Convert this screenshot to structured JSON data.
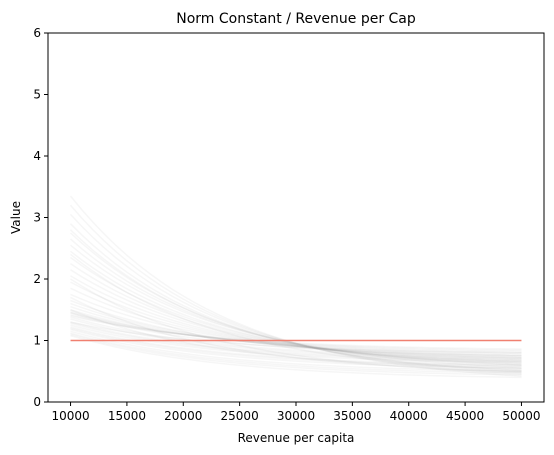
{
  "chart_data": {
    "type": "line",
    "title": "Norm Constant / Revenue per Cap",
    "xlabel": "Revenue per capita",
    "ylabel": "Value",
    "xlim": [
      8000,
      52000
    ],
    "ylim": [
      0,
      6
    ],
    "x_ticks": [
      10000,
      15000,
      20000,
      25000,
      30000,
      35000,
      40000,
      45000,
      50000
    ],
    "y_ticks": [
      0,
      1,
      2,
      3,
      4,
      5,
      6
    ],
    "grid": false,
    "reference_line": {
      "y": 1,
      "x_range": [
        10000,
        50000
      ],
      "color": "#f08070"
    },
    "sample_curves": {
      "color": "#999999",
      "x_range": [
        10000,
        50000
      ],
      "curves": [
        {
          "start": 3.35,
          "end": 0.42
        },
        {
          "start": 3.2,
          "end": 0.45
        },
        {
          "start": 3.05,
          "end": 0.48
        },
        {
          "start": 2.9,
          "end": 0.5
        },
        {
          "start": 2.8,
          "end": 0.52
        },
        {
          "start": 2.75,
          "end": 0.55
        },
        {
          "start": 2.65,
          "end": 0.57
        },
        {
          "start": 2.55,
          "end": 0.6
        },
        {
          "start": 2.45,
          "end": 0.6
        },
        {
          "start": 2.35,
          "end": 0.62
        },
        {
          "start": 2.25,
          "end": 0.63
        },
        {
          "start": 2.15,
          "end": 0.65
        },
        {
          "start": 2.05,
          "end": 0.66
        },
        {
          "start": 1.95,
          "end": 0.68
        },
        {
          "start": 1.85,
          "end": 0.7
        },
        {
          "start": 1.75,
          "end": 0.72
        },
        {
          "start": 1.65,
          "end": 0.73
        },
        {
          "start": 1.6,
          "end": 0.75
        },
        {
          "start": 1.55,
          "end": 0.76
        },
        {
          "start": 1.5,
          "end": 0.78
        },
        {
          "start": 1.47,
          "end": 0.8
        },
        {
          "start": 1.45,
          "end": 0.82
        },
        {
          "start": 1.42,
          "end": 0.84
        },
        {
          "start": 1.4,
          "end": 0.86
        },
        {
          "start": 1.38,
          "end": 0.72
        },
        {
          "start": 1.35,
          "end": 0.7
        },
        {
          "start": 1.3,
          "end": 0.68
        },
        {
          "start": 1.28,
          "end": 0.66
        },
        {
          "start": 1.25,
          "end": 0.64
        },
        {
          "start": 1.22,
          "end": 0.6
        },
        {
          "start": 1.2,
          "end": 0.58
        },
        {
          "start": 1.18,
          "end": 0.55
        },
        {
          "start": 1.15,
          "end": 0.5
        },
        {
          "start": 1.12,
          "end": 0.47
        },
        {
          "start": 1.1,
          "end": 0.44
        },
        {
          "start": 1.08,
          "end": 0.4
        },
        {
          "start": 1.5,
          "end": 0.55
        },
        {
          "start": 1.7,
          "end": 0.5
        },
        {
          "start": 2.0,
          "end": 0.48
        },
        {
          "start": 2.4,
          "end": 0.52
        },
        {
          "start": 1.3,
          "end": 0.8
        },
        {
          "start": 1.45,
          "end": 0.75
        }
      ]
    }
  }
}
